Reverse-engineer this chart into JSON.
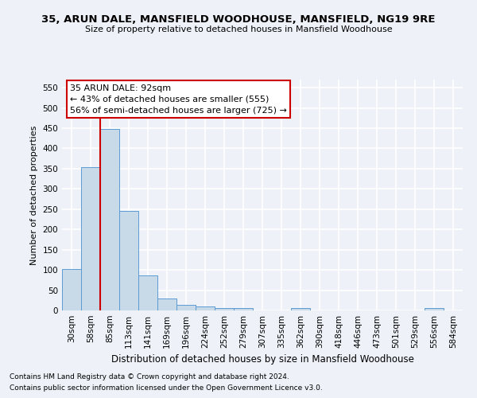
{
  "title": "35, ARUN DALE, MANSFIELD WOODHOUSE, MANSFIELD, NG19 9RE",
  "subtitle": "Size of property relative to detached houses in Mansfield Woodhouse",
  "xlabel": "Distribution of detached houses by size in Mansfield Woodhouse",
  "ylabel": "Number of detached properties",
  "footnote1": "Contains HM Land Registry data © Crown copyright and database right 2024.",
  "footnote2": "Contains public sector information licensed under the Open Government Licence v3.0.",
  "annotation_title": "35 ARUN DALE: 92sqm",
  "annotation_line1": "← 43% of detached houses are smaller (555)",
  "annotation_line2": "56% of semi-detached houses are larger (725) →",
  "bar_color": "#c8d9e8",
  "bar_edge_color": "#5b9bd5",
  "vline_color": "#cc0000",
  "bins": [
    "30sqm",
    "58sqm",
    "85sqm",
    "113sqm",
    "141sqm",
    "169sqm",
    "196sqm",
    "224sqm",
    "252sqm",
    "279sqm",
    "307sqm",
    "335sqm",
    "362sqm",
    "390sqm",
    "418sqm",
    "446sqm",
    "473sqm",
    "501sqm",
    "529sqm",
    "556sqm",
    "584sqm"
  ],
  "values": [
    103,
    353,
    448,
    245,
    87,
    29,
    13,
    9,
    5,
    5,
    0,
    0,
    6,
    0,
    0,
    0,
    0,
    0,
    0,
    5,
    0
  ],
  "ylim": [
    0,
    570
  ],
  "yticks": [
    0,
    50,
    100,
    150,
    200,
    250,
    300,
    350,
    400,
    450,
    500,
    550
  ],
  "bg_color": "#eef2f8",
  "grid_color": "#ffffff",
  "annotation_box_color": "#ffffff",
  "annotation_box_edge": "#cc0000",
  "title_fontsize": 9.5,
  "subtitle_fontsize": 8,
  "ylabel_fontsize": 8,
  "xlabel_fontsize": 8.5,
  "tick_fontsize": 7.5,
  "annotation_fontsize": 8,
  "footnote_fontsize": 6.5
}
